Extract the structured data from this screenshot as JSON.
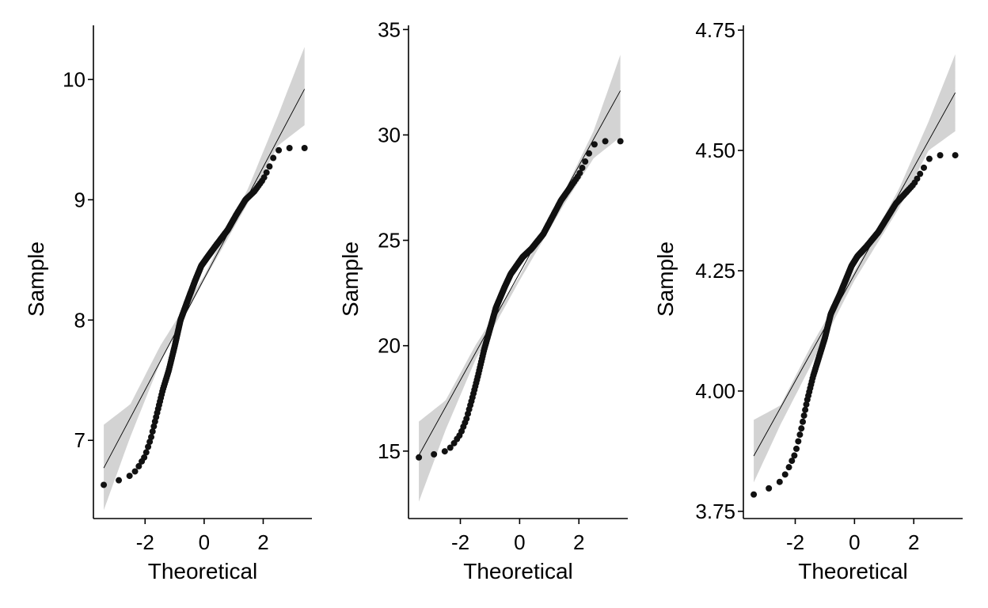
{
  "chart_data": [
    {
      "type": "scatter",
      "xlabel": "Theoretical",
      "ylabel": "Sample",
      "xlim": [
        -3.75,
        3.65
      ],
      "ylim": [
        6.35,
        10.45
      ],
      "xticks": [
        -2,
        0,
        2
      ],
      "xtick_labels": [
        "-2",
        "0",
        "2"
      ],
      "yticks": [
        7,
        8,
        9,
        10
      ],
      "ytick_labels": [
        "7",
        "8",
        "9",
        "10"
      ],
      "reference_line": {
        "x": [
          -3.4,
          3.4
        ],
        "y": [
          6.77,
          9.92
        ]
      },
      "band_lower": [
        [
          -3.4,
          6.42
        ],
        [
          -2.5,
          7.03
        ],
        [
          -1.5,
          7.64
        ],
        [
          0,
          8.33
        ],
        [
          1.5,
          8.98
        ],
        [
          2.5,
          9.45
        ],
        [
          3.4,
          9.62
        ]
      ],
      "band_upper": [
        [
          -3.4,
          7.13
        ],
        [
          -2.5,
          7.3
        ],
        [
          -1.5,
          7.78
        ],
        [
          0,
          8.37
        ],
        [
          1.5,
          9.1
        ],
        [
          2.5,
          9.7
        ],
        [
          3.4,
          10.27
        ]
      ],
      "curve": [
        [
          -3.4,
          6.63
        ],
        [
          -3.0,
          6.66
        ],
        [
          -2.6,
          6.69
        ],
        [
          -2.3,
          6.75
        ],
        [
          -2.0,
          6.87
        ],
        [
          -1.8,
          7.02
        ],
        [
          -1.6,
          7.22
        ],
        [
          -1.4,
          7.42
        ],
        [
          -1.2,
          7.58
        ],
        [
          -1.0,
          7.78
        ],
        [
          -0.8,
          8.0
        ],
        [
          -0.5,
          8.2
        ],
        [
          -0.3,
          8.33
        ],
        [
          -0.1,
          8.45
        ],
        [
          0.1,
          8.52
        ],
        [
          0.4,
          8.62
        ],
        [
          0.8,
          8.75
        ],
        [
          1.1,
          8.88
        ],
        [
          1.4,
          9.0
        ],
        [
          1.7,
          9.07
        ],
        [
          2.0,
          9.17
        ],
        [
          2.2,
          9.27
        ],
        [
          2.4,
          9.38
        ],
        [
          2.6,
          9.43
        ],
        [
          2.9,
          9.43
        ],
        [
          3.4,
          9.43
        ]
      ]
    },
    {
      "type": "scatter",
      "xlabel": "Theoretical",
      "ylabel": "Sample",
      "xlim": [
        -3.75,
        3.65
      ],
      "ylim": [
        11.8,
        35.2
      ],
      "xticks": [
        -2,
        0,
        2
      ],
      "xtick_labels": [
        "-2",
        "0",
        "2"
      ],
      "yticks": [
        15,
        20,
        25,
        30,
        35
      ],
      "ytick_labels": [
        "15",
        "20",
        "25",
        "30",
        "35"
      ],
      "reference_line": {
        "x": [
          -3.4,
          3.4
        ],
        "y": [
          14.8,
          32.1
        ]
      },
      "band_lower": [
        [
          -3.4,
          12.6
        ],
        [
          -2.5,
          16.0
        ],
        [
          -1.5,
          19.3
        ],
        [
          0,
          23.1
        ],
        [
          1.5,
          26.7
        ],
        [
          2.5,
          28.9
        ],
        [
          3.4,
          29.9
        ]
      ],
      "band_upper": [
        [
          -3.4,
          16.4
        ],
        [
          -2.5,
          17.4
        ],
        [
          -1.5,
          20.0
        ],
        [
          0,
          23.3
        ],
        [
          1.5,
          27.3
        ],
        [
          2.5,
          30.2
        ],
        [
          3.4,
          33.8
        ]
      ],
      "curve": [
        [
          -3.4,
          14.7
        ],
        [
          -3.0,
          14.82
        ],
        [
          -2.6,
          14.92
        ],
        [
          -2.3,
          15.2
        ],
        [
          -2.0,
          15.8
        ],
        [
          -1.8,
          16.5
        ],
        [
          -1.6,
          17.5
        ],
        [
          -1.4,
          18.6
        ],
        [
          -1.2,
          19.8
        ],
        [
          -1.0,
          20.8
        ],
        [
          -0.8,
          21.8
        ],
        [
          -0.5,
          22.8
        ],
        [
          -0.3,
          23.4
        ],
        [
          -0.1,
          23.8
        ],
        [
          0.1,
          24.2
        ],
        [
          0.4,
          24.6
        ],
        [
          0.8,
          25.3
        ],
        [
          1.1,
          26.1
        ],
        [
          1.4,
          26.9
        ],
        [
          1.7,
          27.5
        ],
        [
          2.0,
          28.1
        ],
        [
          2.2,
          28.7
        ],
        [
          2.4,
          29.3
        ],
        [
          2.6,
          29.7
        ],
        [
          2.9,
          29.7
        ],
        [
          3.4,
          29.7
        ]
      ]
    },
    {
      "type": "scatter",
      "xlabel": "Theoretical",
      "ylabel": "Sample",
      "xlim": [
        -3.75,
        3.65
      ],
      "ylim": [
        3.735,
        4.76
      ],
      "xticks": [
        -2,
        0,
        2
      ],
      "xtick_labels": [
        "-2",
        "0",
        "2"
      ],
      "yticks": [
        3.75,
        4.0,
        4.25,
        4.5,
        4.75
      ],
      "ytick_labels": [
        "3.75",
        "4.00",
        "4.25",
        "4.50",
        "4.75"
      ],
      "reference_line": {
        "x": [
          -3.4,
          3.4
        ],
        "y": [
          3.865,
          4.62
        ]
      },
      "band_lower": [
        [
          -3.4,
          3.81
        ],
        [
          -2.5,
          3.93
        ],
        [
          -1.5,
          4.05
        ],
        [
          0,
          4.23
        ],
        [
          1.5,
          4.38
        ],
        [
          2.5,
          4.5
        ],
        [
          3.4,
          4.54
        ]
      ],
      "band_upper": [
        [
          -3.4,
          3.94
        ],
        [
          -2.5,
          3.97
        ],
        [
          -1.5,
          4.09
        ],
        [
          0,
          4.25
        ],
        [
          1.5,
          4.42
        ],
        [
          2.5,
          4.56
        ],
        [
          3.4,
          4.7
        ]
      ],
      "curve": [
        [
          -3.4,
          3.785
        ],
        [
          -3.0,
          3.795
        ],
        [
          -2.6,
          3.805
        ],
        [
          -2.3,
          3.83
        ],
        [
          -2.0,
          3.87
        ],
        [
          -1.8,
          3.92
        ],
        [
          -1.6,
          3.98
        ],
        [
          -1.4,
          4.03
        ],
        [
          -1.2,
          4.07
        ],
        [
          -1.0,
          4.11
        ],
        [
          -0.8,
          4.16
        ],
        [
          -0.5,
          4.2
        ],
        [
          -0.3,
          4.23
        ],
        [
          -0.1,
          4.26
        ],
        [
          0.1,
          4.28
        ],
        [
          0.4,
          4.3
        ],
        [
          0.8,
          4.33
        ],
        [
          1.1,
          4.36
        ],
        [
          1.4,
          4.39
        ],
        [
          1.7,
          4.41
        ],
        [
          2.0,
          4.43
        ],
        [
          2.2,
          4.45
        ],
        [
          2.4,
          4.47
        ],
        [
          2.6,
          4.49
        ],
        [
          2.9,
          4.49
        ],
        [
          3.4,
          4.49
        ]
      ]
    }
  ]
}
